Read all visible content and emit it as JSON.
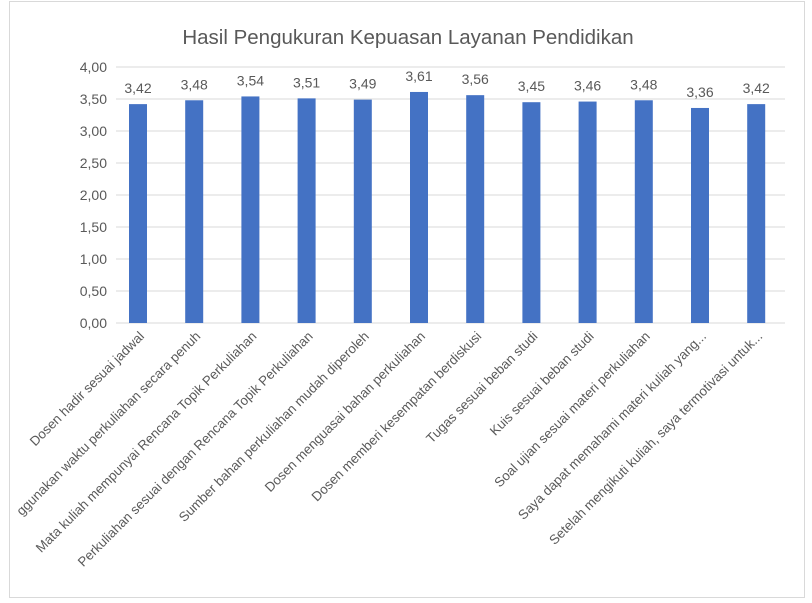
{
  "chart_data": {
    "type": "bar",
    "title": "Hasil Pengukuran Kepuasan Layanan Pendidikan",
    "categories": [
      "Dosen hadir sesuai jadwal",
      "ggunakan waktu perkuliahan secara penuh",
      "Mata kuliah mempunyai Rencana Topik Perkuliahan",
      "Perkuliahan sesuai dengan Rencana Topik Perkuliahan",
      "Sumber bahan perkuliahan mudah diperoleh",
      "Dosen menguasai bahan perkuliahan",
      "Dosen memberi kesempatan berdiskusi",
      "Tugas sesuai beban studi",
      "Kuis sesuai beban studi",
      "Soal ujian sesuai materi perkuliahan",
      "Saya dapat memahami materi kuliah yang...",
      "Setelah mengikuti kuliah, saya termotivasi untuk..."
    ],
    "values": [
      3.42,
      3.48,
      3.54,
      3.51,
      3.49,
      3.61,
      3.56,
      3.45,
      3.46,
      3.48,
      3.36,
      3.42
    ],
    "data_labels": [
      "3,42",
      "3,48",
      "3,54",
      "3,51",
      "3,49",
      "3,61",
      "3,56",
      "3,45",
      "3,46",
      "3,48",
      "3,36",
      "3,42"
    ],
    "yticks": [
      "0,00",
      "0,50",
      "1,00",
      "1,50",
      "2,00",
      "2,50",
      "3,00",
      "3,50",
      "4,00"
    ],
    "ylim": [
      0,
      4
    ],
    "xlabel": "",
    "ylabel": "",
    "grid": true,
    "legend": "none",
    "bar_color": "#4472c4",
    "grid_color": "#d9d9d9"
  }
}
